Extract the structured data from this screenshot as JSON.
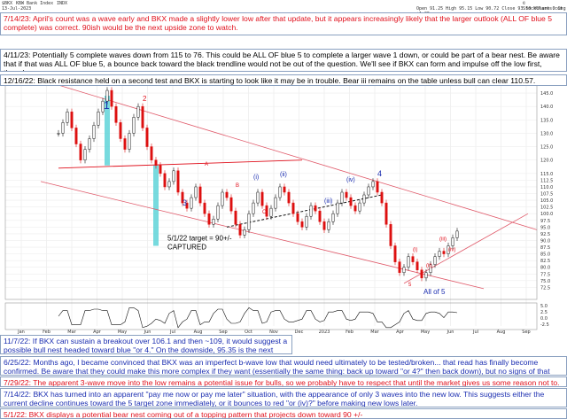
{
  "chart_data": {
    "type": "candlestick",
    "header": {
      "ticker": "$BKX",
      "name": "KBW Bank Index",
      "exchange": "INDX",
      "date": "13-Jul-2023",
      "brand": "© StockCharts.com",
      "ohlc": "Open 91.25  High 95.15  Low 90.72  Close 93.50  Volume 0  Chg +1.05"
    },
    "y_ticks": [
      "145.0",
      "140.0",
      "135.0",
      "130.0",
      "125.0",
      "120.0",
      "115.0",
      "112.5",
      "110.0",
      "107.5",
      "105.0",
      "102.5",
      "100.0",
      "97.5",
      "95.0",
      "92.5",
      "90.0",
      "87.5",
      "85.0",
      "82.5",
      "80.0",
      "77.5",
      "75.0",
      "72.5"
    ],
    "x_ticks": [
      "Jan",
      "Feb",
      "Mar",
      "Apr",
      "May",
      "Jun",
      "Jul",
      "Aug",
      "Sep",
      "Oct",
      "Nov",
      "Dec",
      "2023",
      "Feb",
      "Mar",
      "Apr",
      "May",
      "Jun",
      "Jul",
      "Aug",
      "Sep"
    ],
    "lower_axis": [
      "5.0",
      "2.5",
      "0.0",
      "-2.5"
    ],
    "ylim": [
      68,
      148
    ],
    "series": [
      {
        "values": [
          130,
          134,
          138,
          132,
          126,
          120,
          124,
          128,
          133,
          138,
          142,
          146,
          140,
          134,
          128,
          124,
          130,
          136,
          140,
          132,
          125,
          120,
          118,
          115,
          110,
          112,
          116,
          108,
          104,
          102,
          106,
          110,
          104,
          100,
          96,
          98,
          103,
          108,
          106,
          101,
          96,
          92,
          94,
          100,
          104,
          108,
          103,
          99,
          102,
          106,
          110,
          108,
          104,
          100,
          97,
          95,
          99,
          103,
          101,
          97,
          94,
          97,
          100,
          104,
          108,
          106,
          103,
          101,
          104,
          107,
          110,
          112,
          108,
          104,
          96,
          88,
          82,
          78,
          80,
          84,
          82,
          79,
          76,
          78,
          81,
          84,
          86,
          85,
          88,
          91,
          93.5
        ]
      }
    ],
    "wave_labels": [
      "1",
      "2",
      "2",
      "3",
      "4",
      "(i)",
      "(ii)",
      "(iii)",
      "(iv)",
      "A",
      "B",
      "C",
      "All of 5",
      "(i)",
      "(ii)",
      "(iii)",
      "(iv)",
      "5"
    ],
    "target_note": [
      "5/1/22 target = 90+/-",
      "CAPTURED"
    ]
  },
  "annotations": [
    {
      "text": "7/14/23:  April's count was a wave early and BKX made a slightly lower low after that update, but it appears increasingly likely that the larger outlook (ALL OF blue 5 complete) was correct.  90ish would be the next upside zone to watch.",
      "color": "#e0101c"
    },
    {
      "text": "4/11/23:  Potentially 5 complete waves down from 115 to 76.  This could be ALL OF blue 5 to complete a larger wave 1 down, or could be part of a bear nest.  Be aware that if that was ALL OF blue 5, a bounce back toward the black trendline would not be out of the question.  We'll see if BKX can form and impulse off the low first, though.",
      "color": "#000000"
    },
    {
      "text": "12/16/22:  Black resistance held on a second test and BKX is starting to look like it may be in trouble.  Bear iii remains on the table unless bull can clear 110.57.",
      "color": "#000000"
    },
    {
      "text": "11/7/22:  If BKX can sustain a breakout over 106.1 and then ~109, it would suggest a possible bull nest headed toward blue \"or 4.\"  On the downside, 95.35 is the next important level.",
      "color": "#1a2db0"
    },
    {
      "text": "6/25/22:  Months ago, I became convinced that BKX was an imperfect b-wave low that would need ultimately to be tested/broken... that read has finally become confirmed.  Be aware that they could make this more complex if they want (essentially the same thing: back up toward \"or 4?\" then back down), but no signs of that yet.",
      "color": "#1a2db0"
    },
    {
      "text": "7/29/22:  The apparent 3-wave move into the low remains a potential issue for bulls, so we probably have to respect that until the market gives us some reason not to.",
      "color": "#e0101c"
    },
    {
      "text": "7/14/22:  BKX has turned into an apparent \"pay me now or pay me later\" situation, with the appearance of only 3 waves into the new low.  This suggests either the current decline continues toward the 5 target zone immediately, or it bounces to red \"or (iv)?\" before making new lows later.",
      "color": "#1a2db0"
    },
    {
      "text": "5/1/22:  BKX displays a potential bear nest coming out of a topping pattern that projects down toward 90 +/-",
      "color": "#e0101c"
    }
  ]
}
